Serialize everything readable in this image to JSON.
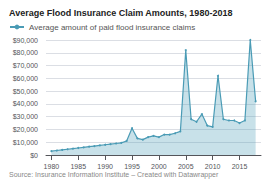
{
  "chart_data": {
    "type": "area",
    "title": "Average Flood Insurance Claim Amounts, 1980-2018",
    "annotations": [
      "Source: Insurance Information Institute – Created with Datawrapper"
    ],
    "x": [
      1980,
      1981,
      1982,
      1983,
      1984,
      1985,
      1986,
      1987,
      1988,
      1989,
      1990,
      1991,
      1992,
      1993,
      1994,
      1995,
      1996,
      1997,
      1998,
      1999,
      2000,
      2001,
      2002,
      2003,
      2004,
      2005,
      2006,
      2007,
      2008,
      2009,
      2010,
      2011,
      2012,
      2013,
      2014,
      2015,
      2016,
      2017,
      2018
    ],
    "series": [
      {
        "name": "Average amount of paid flood insurance claims",
        "color": "#4a9bb5",
        "marker": "circle",
        "values": [
          3000,
          3500,
          4000,
          4500,
          5000,
          5500,
          6000,
          6500,
          7000,
          7500,
          8000,
          8500,
          9000,
          9500,
          11000,
          21000,
          13000,
          12000,
          14000,
          15000,
          14000,
          16000,
          16000,
          17000,
          18500,
          82000,
          28000,
          26000,
          32000,
          23000,
          22000,
          62000,
          28000,
          27000,
          27000,
          25000,
          27000,
          90000,
          42000
        ]
      }
    ],
    "xlim": [
      1979,
      2019
    ],
    "xticks": [
      1980,
      1985,
      1990,
      1995,
      2000,
      2005,
      2010,
      2015
    ],
    "ylim": [
      0,
      90000
    ],
    "yticks": [
      {
        "value": 0,
        "label": "$0"
      },
      {
        "value": 10000,
        "label": "$10,000"
      },
      {
        "value": 20000,
        "label": "$20,000"
      },
      {
        "value": 30000,
        "label": "$30,000"
      },
      {
        "value": 40000,
        "label": "$40,000"
      },
      {
        "value": 50000,
        "label": "$50,000"
      },
      {
        "value": 60000,
        "label": "$60,000"
      },
      {
        "value": 70000,
        "label": "$70,000"
      },
      {
        "value": 80000,
        "label": "$80,000"
      },
      {
        "value": 90000,
        "label": "$90,000"
      }
    ],
    "grid": true,
    "legend": "upper left"
  }
}
